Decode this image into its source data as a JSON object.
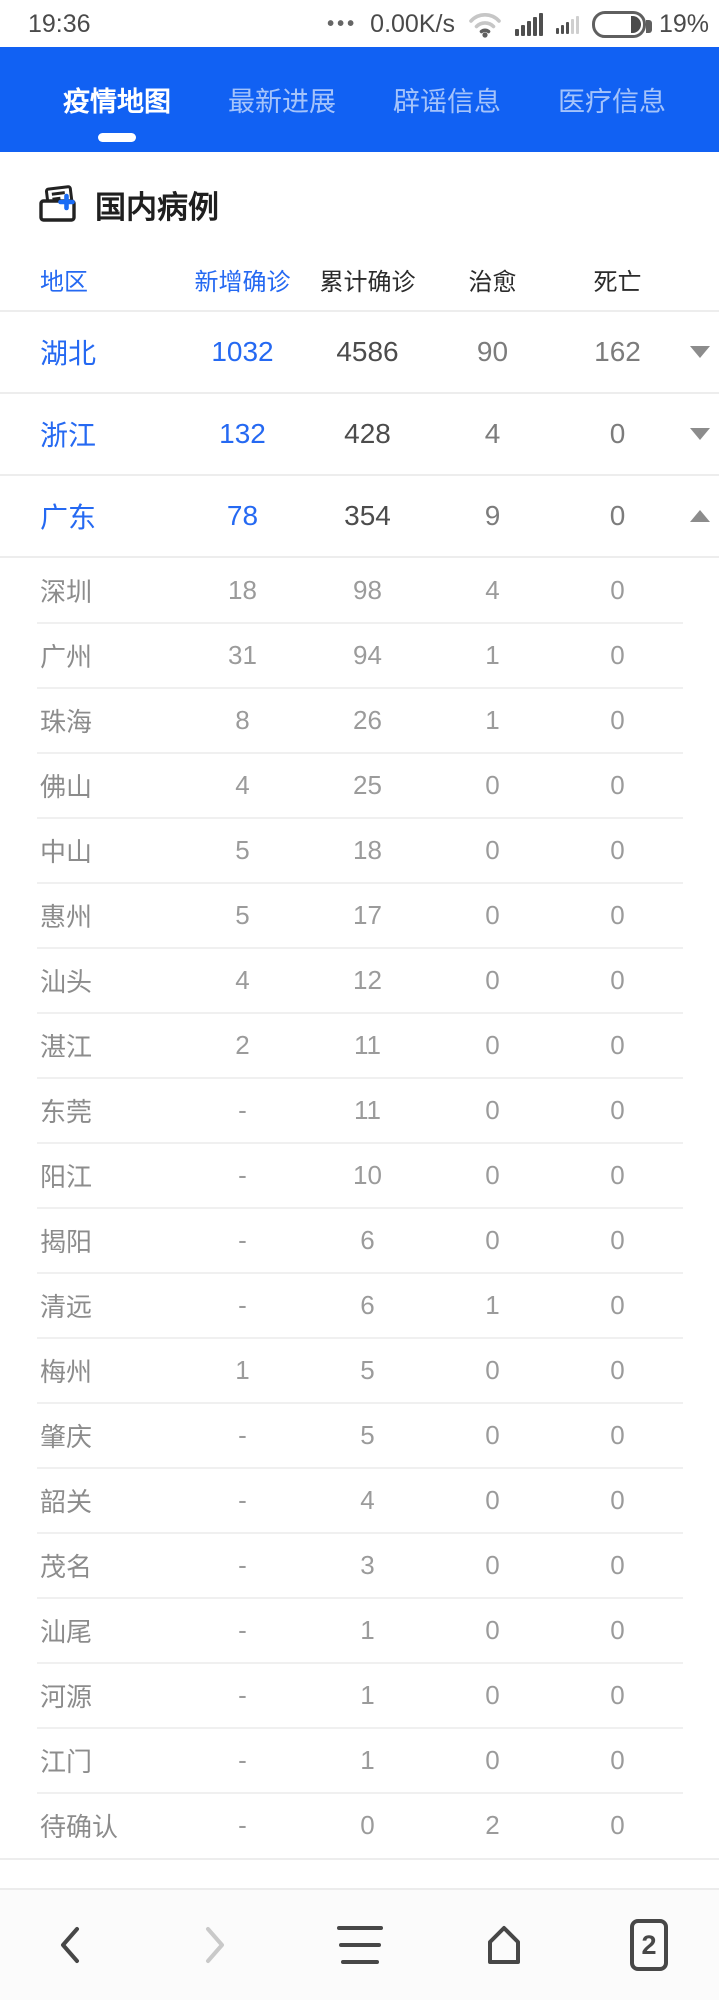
{
  "status_bar": {
    "time": "19:36",
    "menu_dots": "•••",
    "network_speed": "0.00K/s",
    "battery_percent": "19%"
  },
  "tab_bar": {
    "bar_color": "#1161f3",
    "tabs": [
      {
        "label": "疫情地图",
        "active": true
      },
      {
        "label": "最新进展",
        "active": false
      },
      {
        "label": "辟谣信息",
        "active": false
      },
      {
        "label": "医疗信息",
        "active": false
      }
    ]
  },
  "section": {
    "title": "国内病例",
    "icon": "medical-records-icon"
  },
  "table": {
    "headers": {
      "region": "地区",
      "new": "新增确诊",
      "total": "累计确诊",
      "cured": "治愈",
      "dead": "死亡"
    },
    "link_color": "#2569f2",
    "provinces": [
      {
        "name": "湖北",
        "new": "1032",
        "total": "4586",
        "cured": "90",
        "dead": "162",
        "expanded": false,
        "cities": []
      },
      {
        "name": "浙江",
        "new": "132",
        "total": "428",
        "cured": "4",
        "dead": "0",
        "expanded": false,
        "cities": []
      },
      {
        "name": "广东",
        "new": "78",
        "total": "354",
        "cured": "9",
        "dead": "0",
        "expanded": true,
        "cities": [
          {
            "name": "深圳",
            "new": "18",
            "total": "98",
            "cured": "4",
            "dead": "0"
          },
          {
            "name": "广州",
            "new": "31",
            "total": "94",
            "cured": "1",
            "dead": "0"
          },
          {
            "name": "珠海",
            "new": "8",
            "total": "26",
            "cured": "1",
            "dead": "0"
          },
          {
            "name": "佛山",
            "new": "4",
            "total": "25",
            "cured": "0",
            "dead": "0"
          },
          {
            "name": "中山",
            "new": "5",
            "total": "18",
            "cured": "0",
            "dead": "0"
          },
          {
            "name": "惠州",
            "new": "5",
            "total": "17",
            "cured": "0",
            "dead": "0"
          },
          {
            "name": "汕头",
            "new": "4",
            "total": "12",
            "cured": "0",
            "dead": "0"
          },
          {
            "name": "湛江",
            "new": "2",
            "total": "11",
            "cured": "0",
            "dead": "0"
          },
          {
            "name": "东莞",
            "new": "-",
            "total": "11",
            "cured": "0",
            "dead": "0"
          },
          {
            "name": "阳江",
            "new": "-",
            "total": "10",
            "cured": "0",
            "dead": "0"
          },
          {
            "name": "揭阳",
            "new": "-",
            "total": "6",
            "cured": "0",
            "dead": "0"
          },
          {
            "name": "清远",
            "new": "-",
            "total": "6",
            "cured": "1",
            "dead": "0"
          },
          {
            "name": "梅州",
            "new": "1",
            "total": "5",
            "cured": "0",
            "dead": "0"
          },
          {
            "name": "肇庆",
            "new": "-",
            "total": "5",
            "cured": "0",
            "dead": "0"
          },
          {
            "name": "韶关",
            "new": "-",
            "total": "4",
            "cured": "0",
            "dead": "0"
          },
          {
            "name": "茂名",
            "new": "-",
            "total": "3",
            "cured": "0",
            "dead": "0"
          },
          {
            "name": "汕尾",
            "new": "-",
            "total": "1",
            "cured": "0",
            "dead": "0"
          },
          {
            "name": "河源",
            "new": "-",
            "total": "1",
            "cured": "0",
            "dead": "0"
          },
          {
            "name": "江门",
            "new": "-",
            "total": "1",
            "cured": "0",
            "dead": "0"
          },
          {
            "name": "待确认",
            "new": "-",
            "total": "0",
            "cured": "2",
            "dead": "0"
          }
        ]
      }
    ]
  },
  "toolbar": {
    "tab_count": "2"
  }
}
